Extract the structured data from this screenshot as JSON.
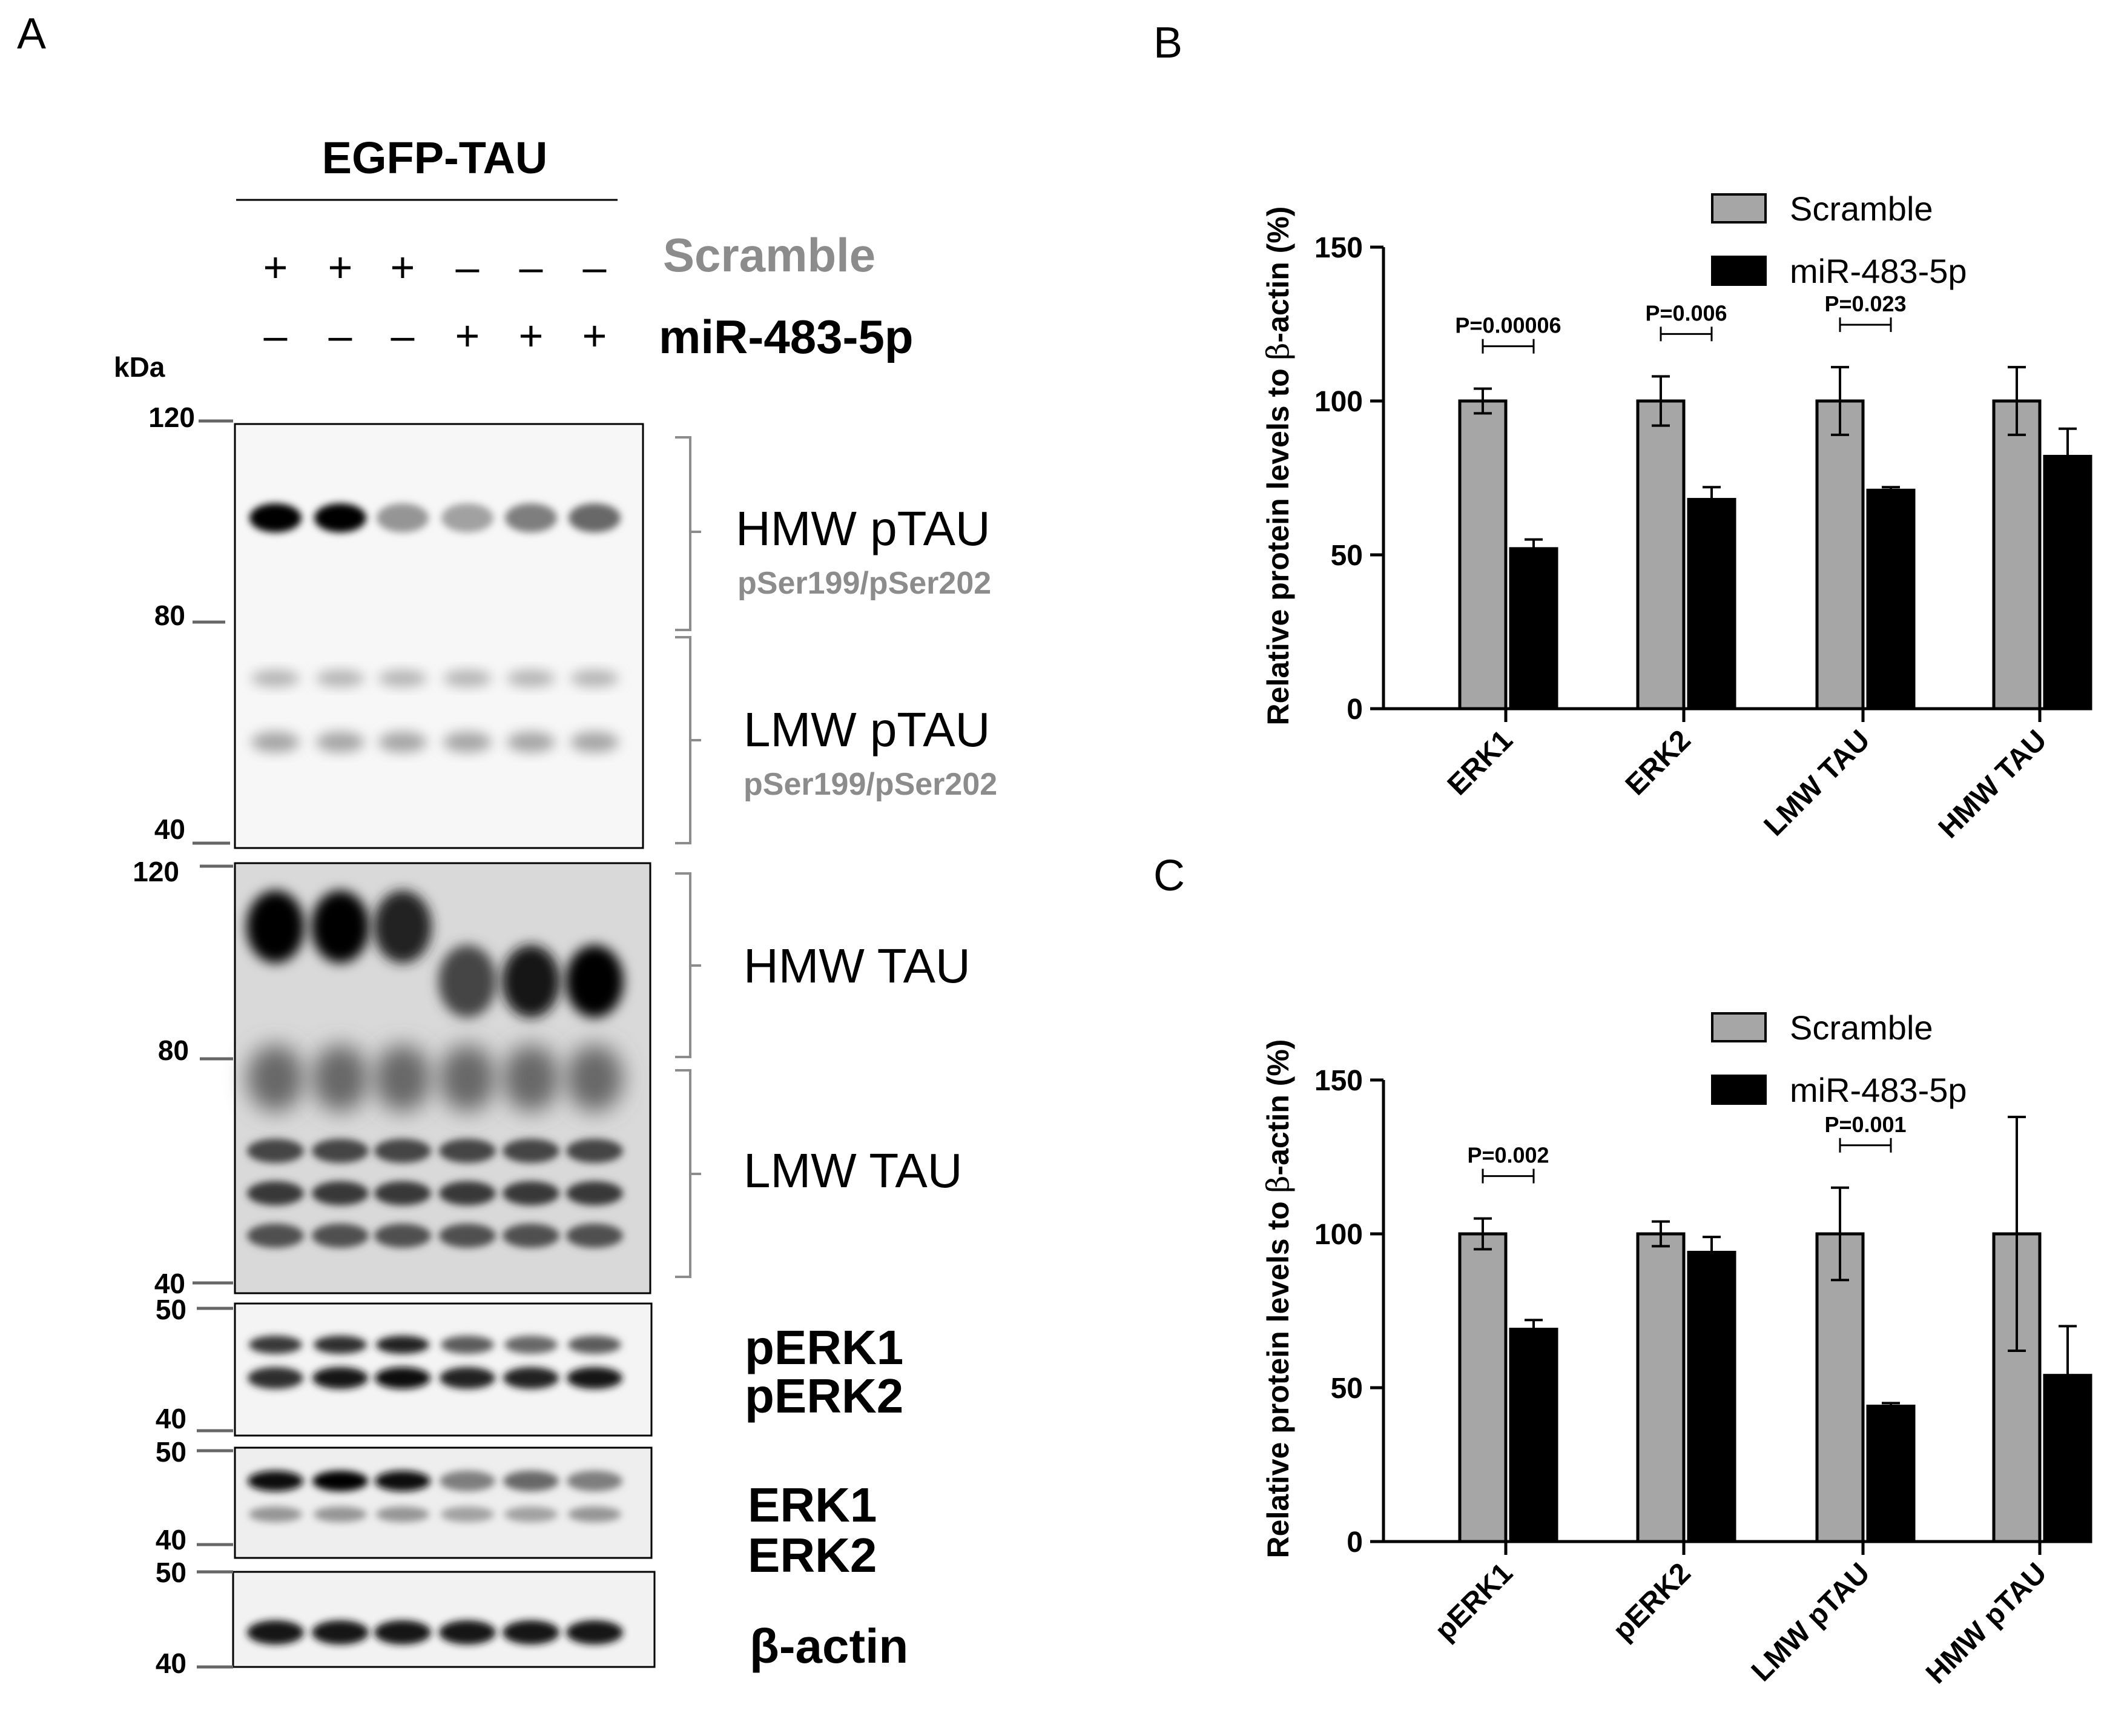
{
  "panel_labels": {
    "a": "A",
    "b": "B",
    "c": "C"
  },
  "blot": {
    "construct": "EGFP-TAU",
    "kda": "kDa",
    "conditions": [
      {
        "name": "Scramble",
        "signs": [
          "+",
          "+",
          "+",
          "–",
          "–",
          "–"
        ]
      },
      {
        "name": "miR-483-5p",
        "signs": [
          "–",
          "–",
          "–",
          "+",
          "+",
          "+"
        ]
      }
    ],
    "panels": [
      {
        "id": "ptau",
        "markers": [
          "120",
          "80",
          "40"
        ],
        "labels": [
          {
            "main": "HMW pTAU",
            "sub": "pSer199/pSer202"
          },
          {
            "main": "LMW pTAU",
            "sub": "pSer199/pSer202"
          }
        ]
      },
      {
        "id": "tau",
        "markers": [
          "120",
          "80",
          "40"
        ],
        "labels": [
          {
            "main": "HMW TAU"
          },
          {
            "main": "LMW TAU"
          }
        ]
      },
      {
        "id": "perk",
        "markers": [
          "50",
          "40"
        ],
        "labels": [
          {
            "main": "pERK1"
          },
          {
            "main": "pERK2"
          }
        ]
      },
      {
        "id": "erk",
        "markers": [
          "50",
          "40"
        ],
        "labels": [
          {
            "main": "ERK1"
          },
          {
            "main": "ERK2"
          }
        ]
      },
      {
        "id": "actin",
        "markers": [
          "50",
          "40"
        ],
        "labels": [
          {
            "main": "β-actin"
          }
        ]
      }
    ],
    "band_intensity": {
      "hmw_ptau": [
        1.0,
        1.0,
        0.35,
        0.3,
        0.45,
        0.55
      ],
      "hmw_tau": [
        1.0,
        1.0,
        0.85,
        0.7,
        0.9,
        1.0
      ],
      "perk1": [
        0.75,
        0.8,
        0.85,
        0.6,
        0.55,
        0.6
      ],
      "perk2": [
        0.8,
        0.9,
        0.95,
        0.85,
        0.85,
        0.9
      ],
      "erk1": [
        0.95,
        1.0,
        0.95,
        0.45,
        0.55,
        0.45
      ],
      "erk2": [
        0.35,
        0.35,
        0.35,
        0.3,
        0.3,
        0.35
      ],
      "actin": [
        0.9,
        0.9,
        0.9,
        0.9,
        0.9,
        0.9
      ]
    }
  },
  "chart_data": [
    {
      "type": "bar",
      "panel": "B",
      "ylabel_prefix": "Relative protein levels to ",
      "ylabel_symbol": "β",
      "ylabel_suffix": "-actin (%)",
      "xlabel": "",
      "ylim": [
        0,
        150
      ],
      "yticks": [
        "0",
        "50",
        "100",
        "150"
      ],
      "categories": [
        "ERK1",
        "ERK2",
        "LMW TAU",
        "HMW TAU"
      ],
      "series": [
        {
          "name": "Scramble",
          "color": "#a6a6a6",
          "values": [
            100,
            100,
            100,
            100
          ],
          "errors": [
            4,
            8,
            11,
            11
          ]
        },
        {
          "name": "miR-483-5p",
          "color": "#000000",
          "values": [
            52,
            68,
            71,
            82
          ],
          "errors": [
            3,
            4,
            1,
            9
          ]
        }
      ],
      "annotations": [
        {
          "category": 0,
          "text": "P=0.00006"
        },
        {
          "category": 1,
          "text": "P=0.006"
        },
        {
          "category": 2,
          "text": "P=0.023"
        }
      ],
      "legend": "top-right",
      "grid": false
    },
    {
      "type": "bar",
      "panel": "C",
      "ylabel_prefix": "Relative protein levels to ",
      "ylabel_symbol": "β",
      "ylabel_suffix": "-actin (%)",
      "xlabel": "",
      "ylim": [
        0,
        150
      ],
      "yticks": [
        "0",
        "50",
        "100",
        "150"
      ],
      "categories": [
        "pERK1",
        "pERK2",
        "LMW pTAU",
        "HMW pTAU"
      ],
      "series": [
        {
          "name": "Scramble",
          "color": "#a6a6a6",
          "values": [
            100,
            100,
            100,
            100
          ],
          "errors": [
            5,
            4,
            15,
            38
          ]
        },
        {
          "name": "miR-483-5p",
          "color": "#000000",
          "values": [
            69,
            94,
            44,
            54
          ],
          "errors": [
            3,
            5,
            1,
            16
          ]
        }
      ],
      "annotations": [
        {
          "category": 0,
          "text": "P=0.002"
        },
        {
          "category": 2,
          "text": "P=0.001"
        }
      ],
      "legend": "top-right",
      "grid": false
    }
  ]
}
